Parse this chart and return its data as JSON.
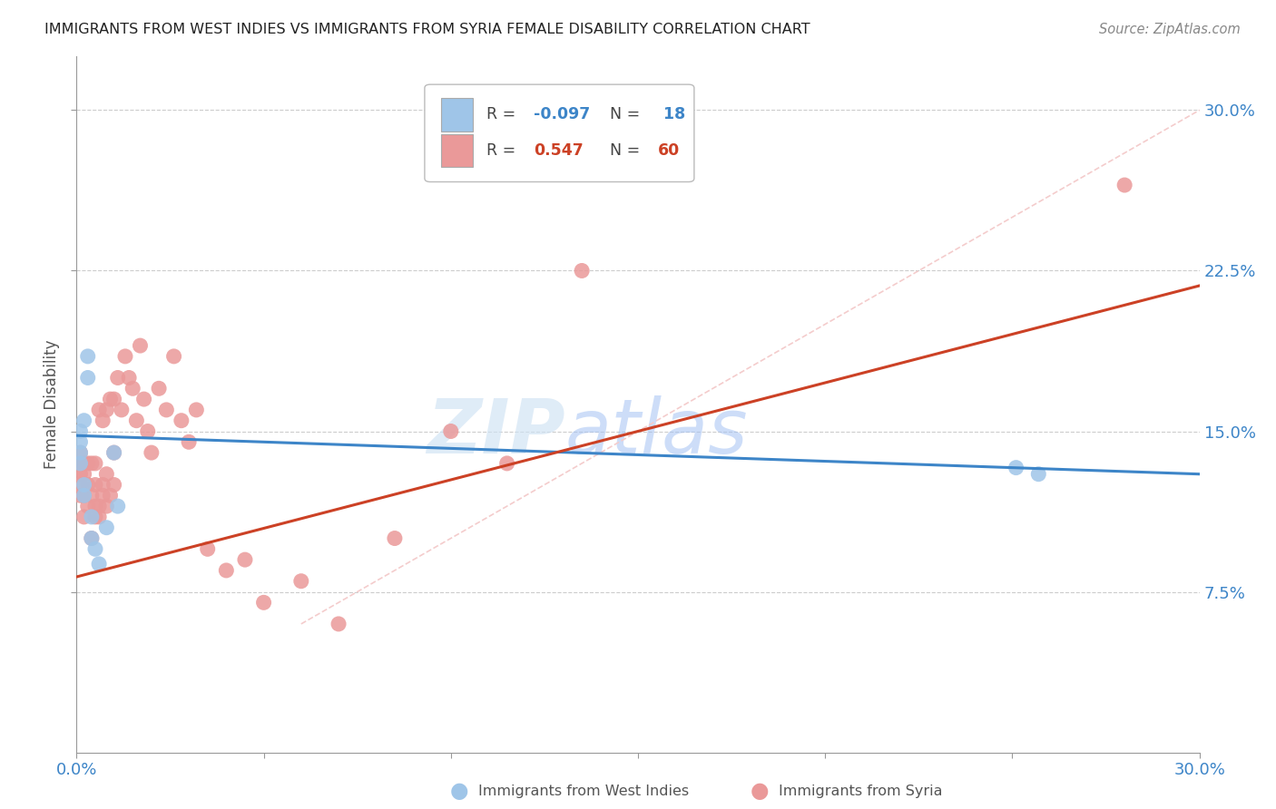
{
  "title": "IMMIGRANTS FROM WEST INDIES VS IMMIGRANTS FROM SYRIA FEMALE DISABILITY CORRELATION CHART",
  "source": "Source: ZipAtlas.com",
  "ylabel": "Female Disability",
  "ytick_labels": [
    "7.5%",
    "15.0%",
    "22.5%",
    "30.0%"
  ],
  "ytick_values": [
    0.075,
    0.15,
    0.225,
    0.3
  ],
  "xlim": [
    0.0,
    0.3
  ],
  "ylim": [
    0.0,
    0.325
  ],
  "watermark_zip": "ZIP",
  "watermark_atlas": "atlas",
  "color_blue": "#9fc5e8",
  "color_pink": "#ea9999",
  "color_blue_line": "#3d85c8",
  "color_pink_line": "#cc4125",
  "color_diag_line": "#f4cccc",
  "legend_r1_label": "R = ",
  "legend_r1_val": "-0.097",
  "legend_n1_label": "N = ",
  "legend_n1_val": " 18",
  "legend_r2_label": "R =  ",
  "legend_r2_val": "0.547",
  "legend_n2_label": "N = ",
  "legend_n2_val": "60",
  "wi_x": [
    0.001,
    0.001,
    0.001,
    0.001,
    0.002,
    0.002,
    0.002,
    0.003,
    0.003,
    0.004,
    0.004,
    0.005,
    0.006,
    0.008,
    0.01,
    0.011,
    0.251,
    0.257
  ],
  "wi_y": [
    0.135,
    0.14,
    0.145,
    0.15,
    0.12,
    0.125,
    0.155,
    0.175,
    0.185,
    0.1,
    0.11,
    0.095,
    0.088,
    0.105,
    0.14,
    0.115,
    0.133,
    0.13
  ],
  "sy_x": [
    0.001,
    0.001,
    0.001,
    0.001,
    0.001,
    0.002,
    0.002,
    0.002,
    0.002,
    0.003,
    0.003,
    0.003,
    0.004,
    0.004,
    0.004,
    0.005,
    0.005,
    0.005,
    0.005,
    0.006,
    0.006,
    0.006,
    0.007,
    0.007,
    0.007,
    0.008,
    0.008,
    0.008,
    0.009,
    0.009,
    0.01,
    0.01,
    0.01,
    0.011,
    0.012,
    0.013,
    0.014,
    0.015,
    0.016,
    0.017,
    0.018,
    0.019,
    0.02,
    0.022,
    0.024,
    0.026,
    0.028,
    0.03,
    0.032,
    0.035,
    0.04,
    0.045,
    0.05,
    0.06,
    0.07,
    0.085,
    0.1,
    0.115,
    0.135,
    0.28
  ],
  "sy_y": [
    0.12,
    0.125,
    0.13,
    0.135,
    0.14,
    0.11,
    0.12,
    0.13,
    0.135,
    0.115,
    0.125,
    0.135,
    0.1,
    0.12,
    0.135,
    0.11,
    0.115,
    0.125,
    0.135,
    0.11,
    0.115,
    0.16,
    0.12,
    0.125,
    0.155,
    0.115,
    0.13,
    0.16,
    0.12,
    0.165,
    0.125,
    0.14,
    0.165,
    0.175,
    0.16,
    0.185,
    0.175,
    0.17,
    0.155,
    0.19,
    0.165,
    0.15,
    0.14,
    0.17,
    0.16,
    0.185,
    0.155,
    0.145,
    0.16,
    0.095,
    0.085,
    0.09,
    0.07,
    0.08,
    0.06,
    0.1,
    0.15,
    0.135,
    0.225,
    0.265
  ],
  "blue_line_x0": 0.0,
  "blue_line_y0": 0.148,
  "blue_line_x1": 0.3,
  "blue_line_y1": 0.13,
  "pink_line_x0": 0.0,
  "pink_line_y0": 0.082,
  "pink_line_x1": 0.3,
  "pink_line_y1": 0.218
}
